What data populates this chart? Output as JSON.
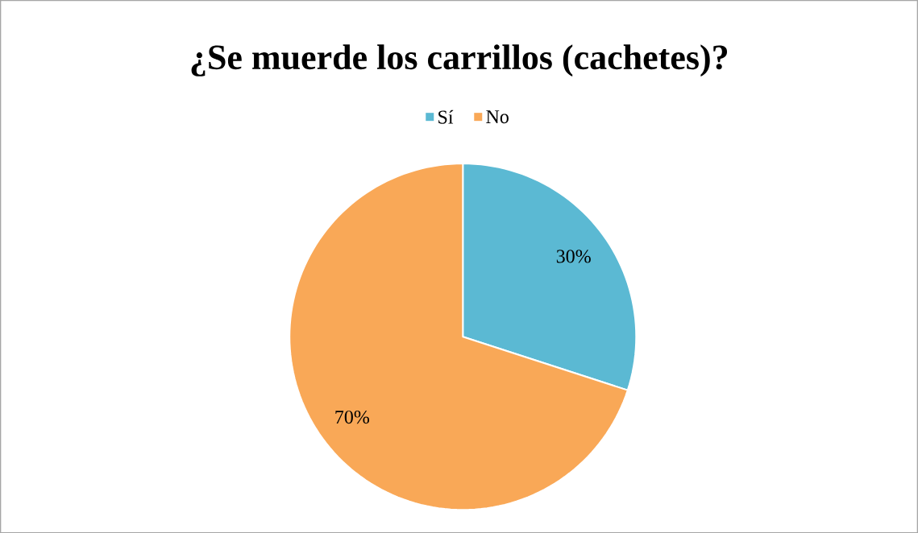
{
  "chart_data": {
    "type": "pie",
    "title": "¿Se muerde los carrillos (cachetes)?",
    "categories": [
      "Sí",
      "No"
    ],
    "values": [
      30,
      70
    ],
    "colors": [
      "#5bb9d3",
      "#f9a857"
    ],
    "value_labels": [
      "30%",
      "70%"
    ],
    "legend": "top"
  }
}
